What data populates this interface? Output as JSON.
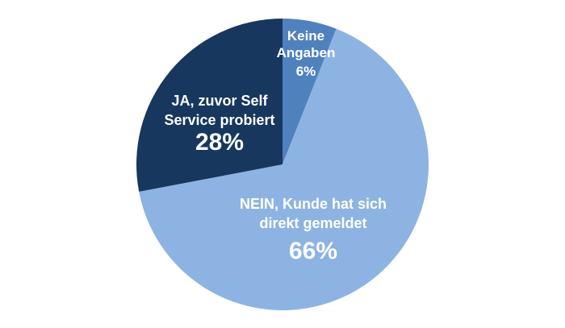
{
  "chart_data": {
    "type": "pie",
    "title": "",
    "start_angle_deg": 0,
    "direction": "clockwise",
    "slices": [
      {
        "label_lines": [
          "Keine",
          "Angaben"
        ],
        "value": 6,
        "percent_label": "6%",
        "color": "#4f81bd"
      },
      {
        "label_lines": [
          "NEIN, Kunde hat sich",
          "direkt gemeldet"
        ],
        "value": 66,
        "percent_label": "66%",
        "color": "#8db3e2"
      },
      {
        "label_lines": [
          "JA, zuvor Self",
          "Service probiert"
        ],
        "value": 28,
        "percent_label": "28%",
        "color": "#17375e"
      }
    ]
  }
}
